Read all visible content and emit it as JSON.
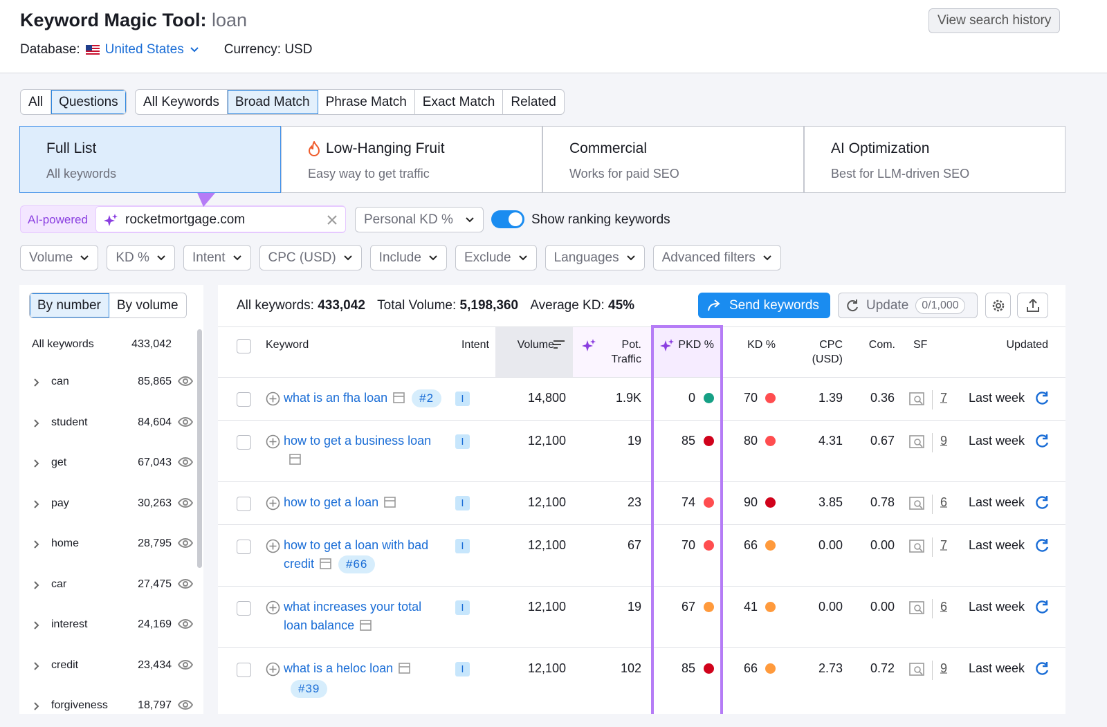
{
  "header": {
    "title": "Keyword Magic Tool:",
    "query": "loan",
    "database_label": "Database:",
    "database": "United States",
    "currency": "Currency: USD",
    "history_button": "View search history"
  },
  "scope_tabs": [
    "All",
    "Questions"
  ],
  "match_tabs": [
    "All Keywords",
    "Broad Match",
    "Phrase Match",
    "Exact Match",
    "Related"
  ],
  "cards": [
    {
      "title": "Full List",
      "subtitle": "All keywords"
    },
    {
      "title": "Low-Hanging Fruit",
      "subtitle": "Easy way to get traffic"
    },
    {
      "title": "Commercial",
      "subtitle": "Works for paid SEO"
    },
    {
      "title": "AI Optimization",
      "subtitle": "Best for LLM-driven SEO"
    }
  ],
  "domain_bar": {
    "badge": "AI-powered",
    "domain": "rocketmortgage.com",
    "personal_kd": "Personal KD %",
    "toggle_label": "Show ranking keywords"
  },
  "filters": [
    "Volume",
    "KD %",
    "Intent",
    "CPC (USD)",
    "Include",
    "Exclude",
    "Languages",
    "Advanced filters"
  ],
  "sidebar": {
    "sort": [
      "By number",
      "By volume"
    ],
    "all": {
      "label": "All keywords",
      "count": "433,042"
    },
    "groups": [
      {
        "name": "can",
        "count": "85,865"
      },
      {
        "name": "student",
        "count": "84,604"
      },
      {
        "name": "get",
        "count": "67,043"
      },
      {
        "name": "pay",
        "count": "30,263"
      },
      {
        "name": "home",
        "count": "28,795"
      },
      {
        "name": "car",
        "count": "27,475"
      },
      {
        "name": "interest",
        "count": "24,169"
      },
      {
        "name": "credit",
        "count": "23,434"
      },
      {
        "name": "forgiveness",
        "count": "18,797"
      }
    ]
  },
  "summary": {
    "all_label": "All keywords:",
    "all_value": "433,042",
    "volume_label": "Total Volume:",
    "volume_value": "5,198,360",
    "kd_label": "Average KD:",
    "kd_value": "45%",
    "send_button": "Send keywords",
    "update_button": "Update",
    "update_count": "0/1,000"
  },
  "table": {
    "columns": [
      "Keyword",
      "Intent",
      "Volume",
      "Pot. Traffic",
      "PKD %",
      "KD %",
      "CPC (USD)",
      "Com.",
      "SF",
      "Updated"
    ],
    "rows": [
      {
        "keyword": "what is an fha loan",
        "tag": "#2",
        "intent": "I",
        "volume": "14,800",
        "pot_traffic": "1.9K",
        "pkd": 0,
        "kd": 70,
        "cpc": "1.39",
        "com": "0.36",
        "sf": 7,
        "updated": "Last week"
      },
      {
        "keyword": "how to get a business loan",
        "intent": "I",
        "volume": "12,100",
        "pot_traffic": 19,
        "pkd": 85,
        "kd": 80,
        "cpc": "4.31",
        "com": "0.67",
        "sf": 9,
        "updated": "Last week"
      },
      {
        "keyword": "how to get a loan",
        "intent": "I",
        "volume": "12,100",
        "pot_traffic": 23,
        "pkd": 74,
        "kd": 90,
        "cpc": "3.85",
        "com": "0.78",
        "sf": 6,
        "updated": "Last week"
      },
      {
        "keyword": "how to get a loan with bad credit",
        "tag": "#66",
        "intent": "I",
        "volume": "12,100",
        "pot_traffic": 67,
        "pkd": 70,
        "kd": 66,
        "cpc": "0.00",
        "com": "0.00",
        "sf": 7,
        "updated": "Last week"
      },
      {
        "keyword": "what increases your total loan balance",
        "intent": "I",
        "volume": "12,100",
        "pot_traffic": 19,
        "pkd": 67,
        "kd": 41,
        "cpc": "0.00",
        "com": "0.00",
        "sf": 6,
        "updated": "Last week"
      },
      {
        "keyword": "what is a heloc loan",
        "tag": "#39",
        "intent": "I",
        "volume": "12,100",
        "pot_traffic": 102,
        "pkd": 85,
        "kd": 66,
        "cpc": "2.73",
        "com": "0.72",
        "sf": 9,
        "updated": "Last week"
      }
    ]
  }
}
